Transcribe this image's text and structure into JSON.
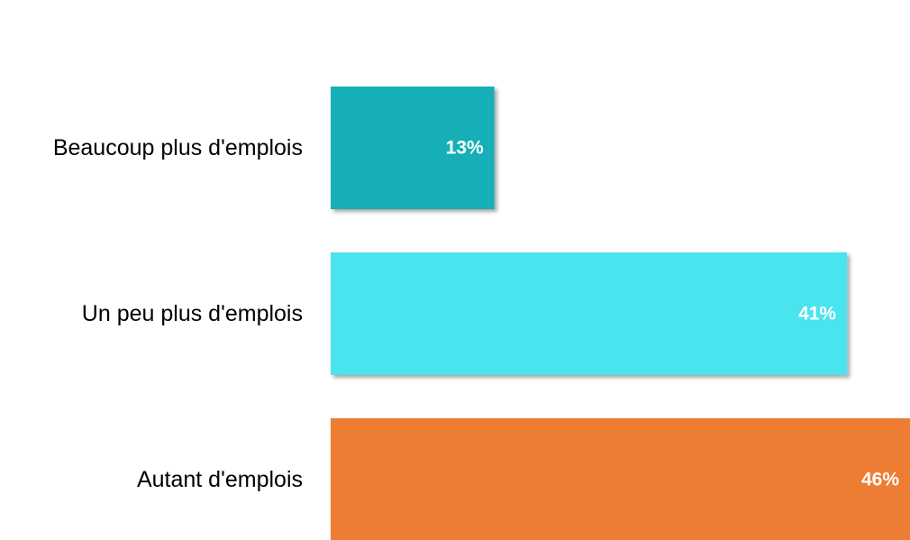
{
  "chart_data": {
    "type": "bar",
    "orientation": "horizontal",
    "categories": [
      "Beaucoup plus d'emplois",
      "Un peu plus d'emplois",
      "Autant d'emplois"
    ],
    "values": [
      13,
      41,
      46
    ],
    "value_labels": [
      "13%",
      "41%",
      "46%"
    ],
    "colors": [
      "#14AFB7",
      "#48E4EE",
      "#ED7D31"
    ],
    "xlim": [
      0,
      46
    ],
    "grid": false,
    "legend": "none"
  }
}
